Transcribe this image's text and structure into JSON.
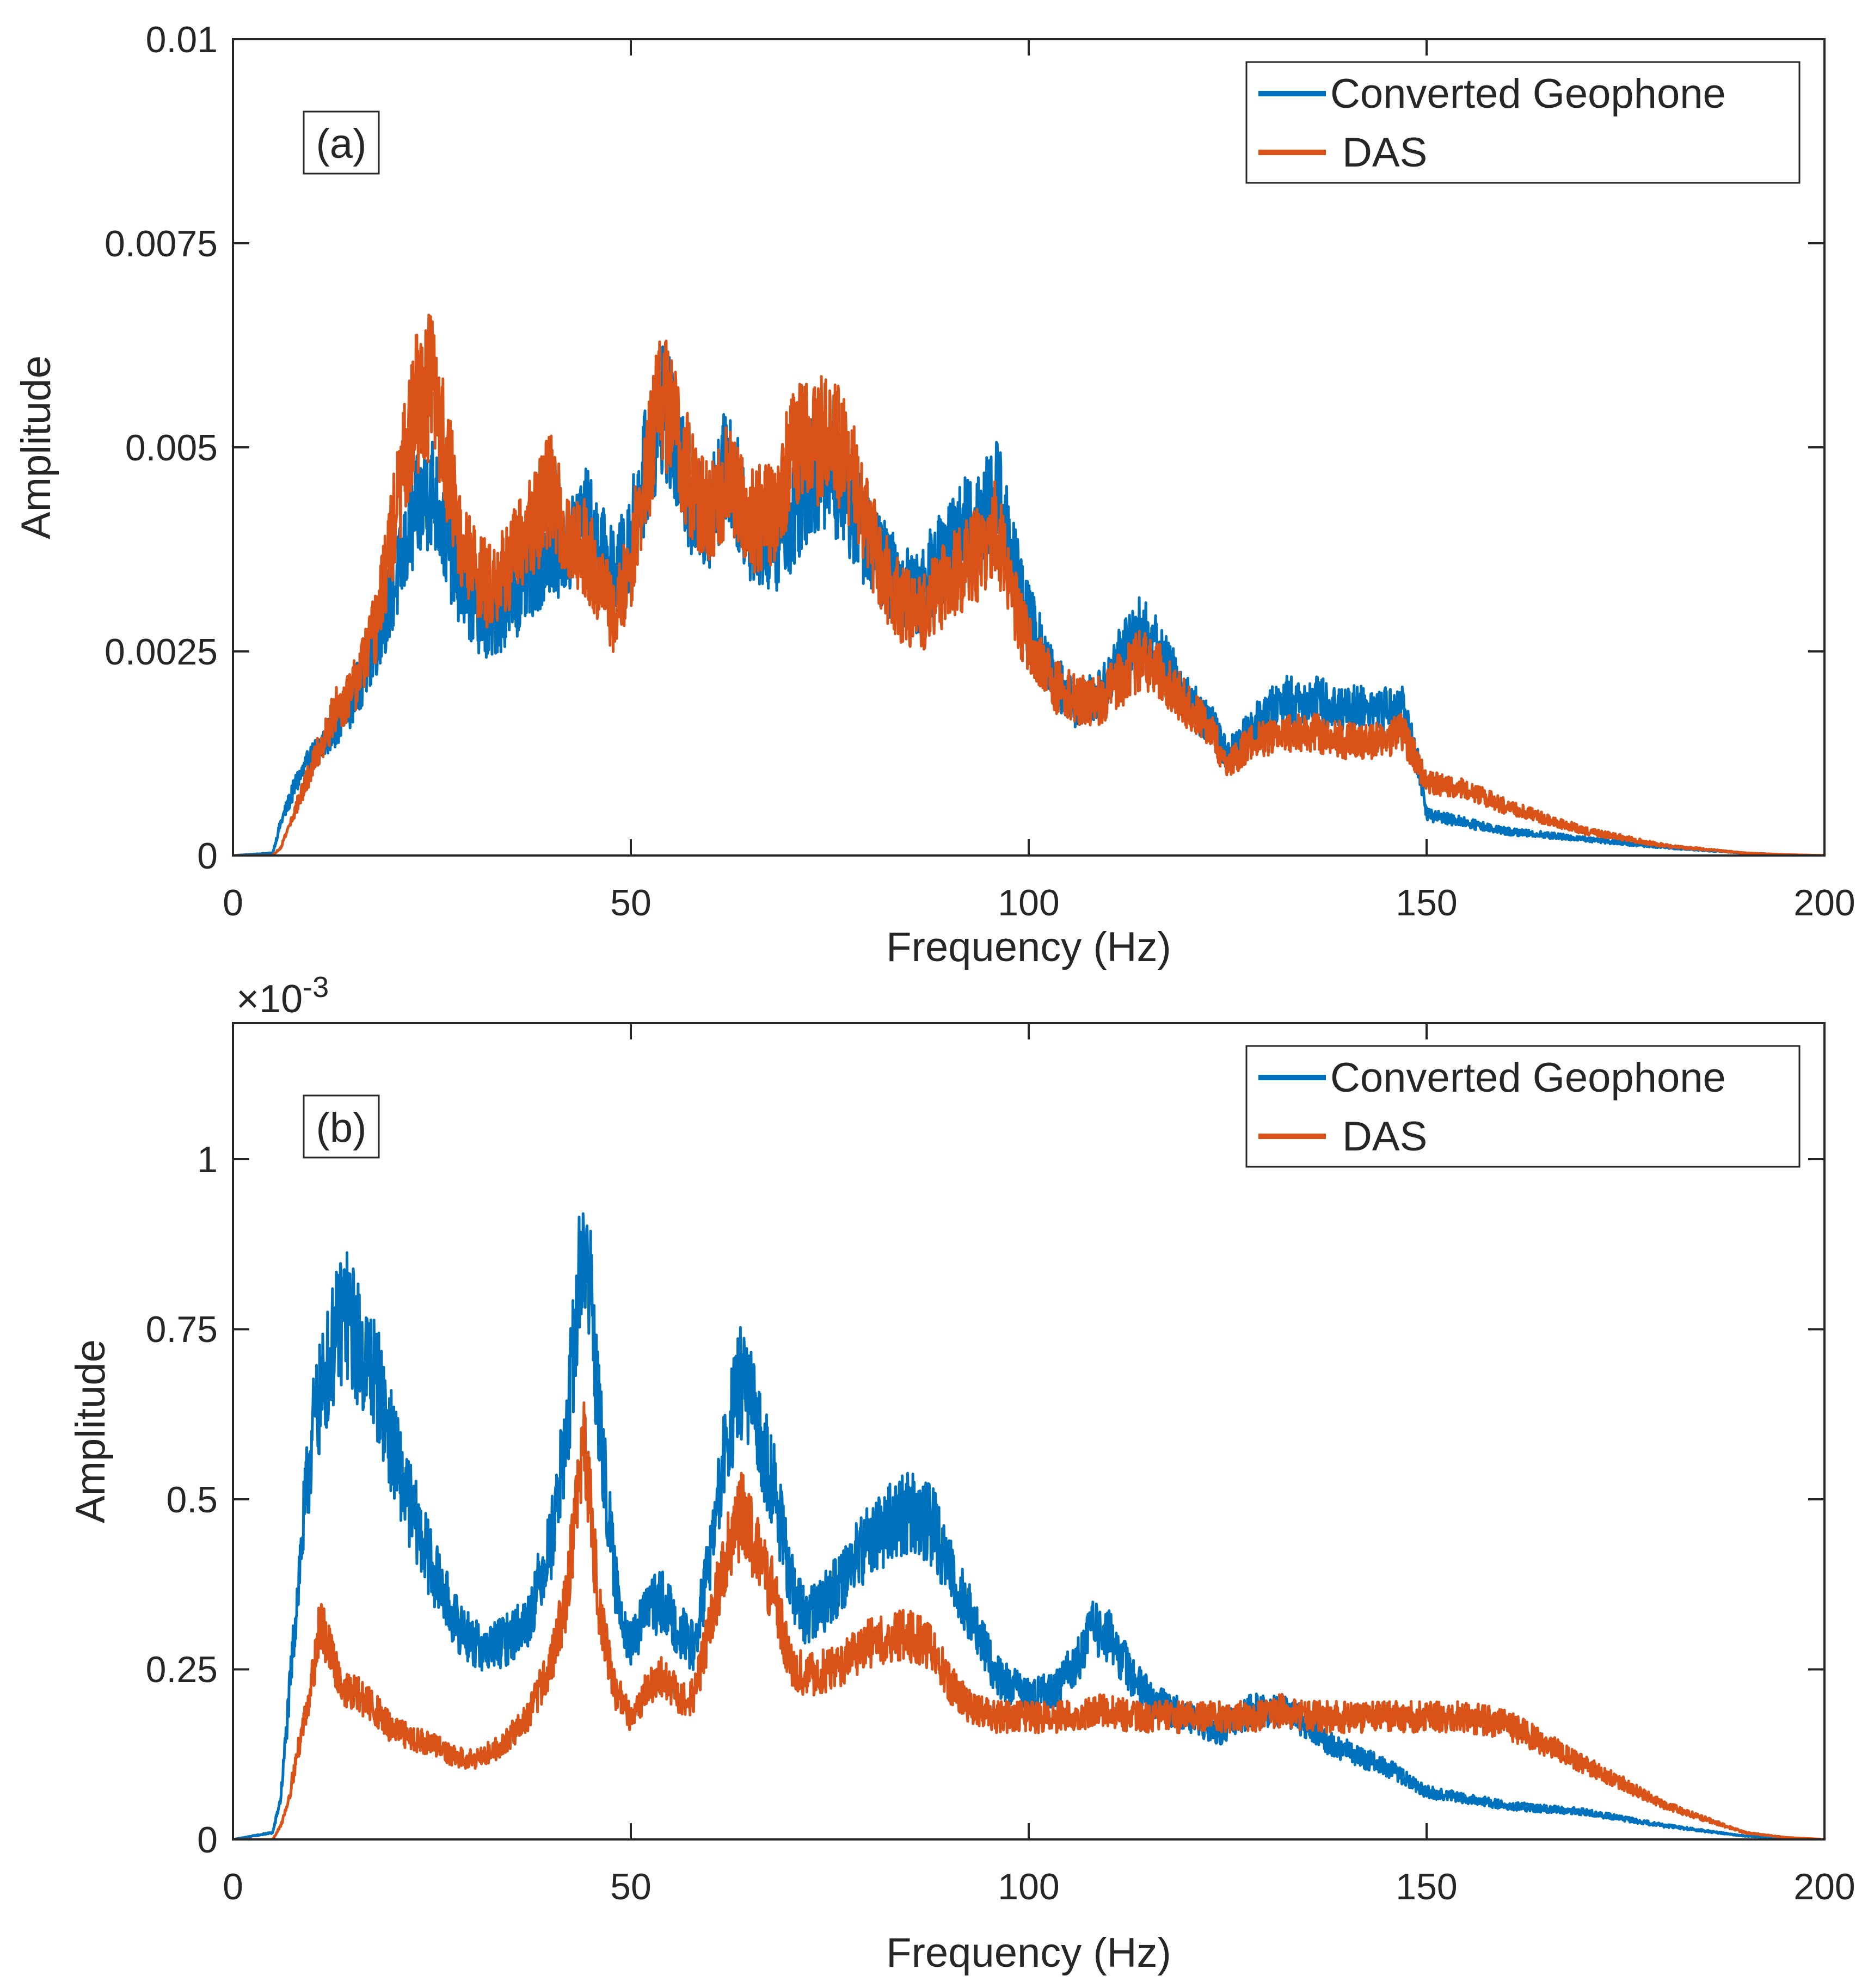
{
  "chart_data": [
    {
      "type": "line",
      "panel_label": "(a)",
      "xlabel": "Frequency (Hz)",
      "ylabel": "Amplitude",
      "xlim": [
        0,
        200
      ],
      "ylim": [
        0,
        0.01
      ],
      "xticks": [
        "0",
        "50",
        "100",
        "150",
        "200"
      ],
      "yticks": [
        "0",
        "0.0025",
        "0.005",
        "0.0075",
        "0.01"
      ],
      "exponent_label": "",
      "legend_position": "top-right",
      "noise_scale": 0.16,
      "series": [
        {
          "name": "Converted Geophone",
          "color": "#0072BD",
          "x": [
            0,
            5,
            6,
            8,
            10,
            13,
            15,
            18,
            21,
            23,
            25,
            27,
            29,
            32,
            35,
            38,
            40,
            42,
            44,
            46,
            48,
            50,
            52,
            54,
            56,
            58,
            60,
            62,
            65,
            68,
            70,
            73,
            76,
            78,
            80,
            83,
            86,
            90,
            94,
            96,
            98,
            100,
            103,
            106,
            109,
            112,
            114,
            117,
            120,
            123,
            125,
            128,
            132,
            136,
            140,
            144,
            147,
            149,
            150,
            155,
            160,
            170,
            180,
            190,
            195,
            200
          ],
          "values": [
            0,
            3e-05,
            0.0004,
            0.0009,
            0.0012,
            0.0016,
            0.0019,
            0.0026,
            0.0035,
            0.0042,
            0.0045,
            0.0038,
            0.0032,
            0.0028,
            0.0031,
            0.0035,
            0.0038,
            0.0037,
            0.0042,
            0.0038,
            0.0034,
            0.0039,
            0.0048,
            0.0056,
            0.0048,
            0.0042,
            0.0042,
            0.0048,
            0.004,
            0.0038,
            0.0041,
            0.0047,
            0.0046,
            0.0042,
            0.0038,
            0.0034,
            0.0032,
            0.0038,
            0.0042,
            0.0045,
            0.0036,
            0.0029,
            0.0022,
            0.0018,
            0.002,
            0.0025,
            0.0028,
            0.0024,
            0.0019,
            0.0016,
            0.0012,
            0.0016,
            0.0019,
            0.0019,
            0.0018,
            0.0018,
            0.0018,
            0.0011,
            0.0005,
            0.0004,
            0.0003,
            0.0002,
            0.0001,
            3e-05,
            1e-05,
            0
          ]
        },
        {
          "name": "DAS",
          "color": "#D95319",
          "x": [
            0,
            5,
            6,
            8,
            10,
            13,
            15,
            18,
            21,
            23,
            25,
            27,
            29,
            32,
            35,
            38,
            40,
            42,
            44,
            46,
            48,
            50,
            52,
            54,
            56,
            58,
            60,
            62,
            65,
            68,
            70,
            73,
            76,
            78,
            80,
            83,
            86,
            90,
            94,
            96,
            98,
            100,
            103,
            106,
            109,
            112,
            114,
            117,
            120,
            123,
            125,
            128,
            132,
            136,
            140,
            144,
            147,
            149,
            150,
            155,
            160,
            170,
            180,
            190,
            195,
            200
          ],
          "values": [
            0,
            0,
            0.0001,
            0.0006,
            0.0011,
            0.0018,
            0.002,
            0.0028,
            0.0045,
            0.0055,
            0.0058,
            0.0048,
            0.0037,
            0.0033,
            0.0036,
            0.0041,
            0.0045,
            0.0039,
            0.0038,
            0.0034,
            0.0029,
            0.0036,
            0.0047,
            0.0057,
            0.0051,
            0.0044,
            0.0041,
            0.0046,
            0.0041,
            0.0042,
            0.0049,
            0.0051,
            0.005,
            0.0046,
            0.0039,
            0.0032,
            0.0029,
            0.0034,
            0.0037,
            0.004,
            0.0031,
            0.0026,
            0.0021,
            0.0019,
            0.0019,
            0.0022,
            0.0024,
            0.0022,
            0.0018,
            0.0015,
            0.0011,
            0.0014,
            0.0015,
            0.0015,
            0.0014,
            0.0014,
            0.0015,
            0.0011,
            0.0009,
            0.0008,
            0.0006,
            0.0003,
            0.00012,
            3e-05,
            1e-05,
            0
          ]
        }
      ]
    },
    {
      "type": "line",
      "panel_label": "(b)",
      "xlabel": "Frequency (Hz)",
      "ylabel": "Amplitude",
      "xlim": [
        0,
        200
      ],
      "ylim": [
        0,
        0.0012
      ],
      "xticks": [
        "0",
        "50",
        "100",
        "150",
        "200"
      ],
      "yticks": [
        "0",
        "0.25",
        "0.5",
        "0.75",
        "1"
      ],
      "exponent_label": "×10",
      "exponent_power": "-3",
      "legend_position": "top-right",
      "noise_scale": 0.13,
      "series": [
        {
          "name": "Converted Geophone",
          "color": "#0072BD",
          "x": [
            0,
            5,
            6,
            7,
            8,
            9,
            10,
            12,
            14,
            16,
            18,
            20,
            22,
            25,
            28,
            31,
            34,
            37,
            40,
            42,
            43,
            44,
            45,
            46,
            48,
            50,
            52,
            54,
            56,
            58,
            60,
            62,
            64,
            66,
            68,
            70,
            72,
            75,
            78,
            80,
            83,
            85,
            88,
            90,
            93,
            96,
            100,
            103,
            106,
            108,
            110,
            113,
            116,
            120,
            124,
            128,
            132,
            135,
            138,
            142,
            146,
            150,
            155,
            160,
            170,
            180,
            190,
            200
          ],
          "values": [
            0,
            1e-05,
            6e-05,
            0.0002,
            0.00035,
            0.00048,
            0.0006,
            0.0007,
            0.00078,
            0.00072,
            0.00068,
            0.00058,
            0.0005,
            0.0004,
            0.00032,
            0.00028,
            0.00029,
            0.00032,
            0.00044,
            0.0006,
            0.00075,
            0.00088,
            0.0008,
            0.00062,
            0.00038,
            0.00028,
            0.00034,
            0.00035,
            0.00031,
            0.00028,
            0.00042,
            0.00058,
            0.00068,
            0.0006,
            0.00052,
            0.00038,
            0.00032,
            0.00036,
            0.00041,
            0.00044,
            0.00047,
            0.00048,
            0.00046,
            0.0004,
            0.00032,
            0.00024,
            0.00021,
            0.00022,
            0.00026,
            0.00031,
            0.0003,
            0.00024,
            0.0002,
            0.00018,
            0.00016,
            0.00019,
            0.00019,
            0.00017,
            0.00014,
            0.00012,
            0.0001,
            7e-05,
            6e-05,
            5e-05,
            4e-05,
            2e-05,
            5e-06,
            0
          ]
        },
        {
          "name": "DAS",
          "color": "#D95319",
          "x": [
            0,
            5,
            6,
            7,
            8,
            9,
            10,
            11,
            12,
            14,
            16,
            18,
            20,
            25,
            28,
            31,
            34,
            37,
            40,
            42,
            43,
            44,
            45,
            46,
            48,
            50,
            52,
            54,
            56,
            58,
            60,
            62,
            64,
            66,
            68,
            70,
            72,
            75,
            78,
            80,
            83,
            85,
            88,
            90,
            93,
            96,
            100,
            103,
            106,
            108,
            110,
            113,
            116,
            120,
            124,
            128,
            132,
            135,
            138,
            142,
            146,
            150,
            155,
            160,
            165,
            170,
            175,
            180,
            185,
            190,
            195,
            200
          ],
          "values": [
            0,
            0,
            2e-05,
            6e-05,
            0.00012,
            0.00018,
            0.00024,
            0.00032,
            0.00028,
            0.00022,
            0.00021,
            0.00019,
            0.00016,
            0.00014,
            0.00012,
            0.00012,
            0.00014,
            0.00018,
            0.00026,
            0.00036,
            0.00048,
            0.00058,
            0.00048,
            0.00034,
            0.00022,
            0.00018,
            0.00022,
            0.00024,
            0.00021,
            0.00021,
            0.00032,
            0.00042,
            0.00048,
            0.00042,
            0.00036,
            0.00026,
            0.00024,
            0.00025,
            0.00027,
            0.00029,
            0.0003,
            0.0003,
            0.00028,
            0.00023,
            0.00019,
            0.00018,
            0.00018,
            0.00018,
            0.00018,
            0.00019,
            0.00019,
            0.00018,
            0.00018,
            0.00018,
            0.00018,
            0.00018,
            0.00019,
            0.00018,
            0.00018,
            0.00018,
            0.00018,
            0.00018,
            0.00018,
            0.00017,
            0.00014,
            0.00011,
            8e-05,
            5e-05,
            3e-05,
            1e-05,
            3e-06,
            0
          ]
        }
      ]
    }
  ]
}
